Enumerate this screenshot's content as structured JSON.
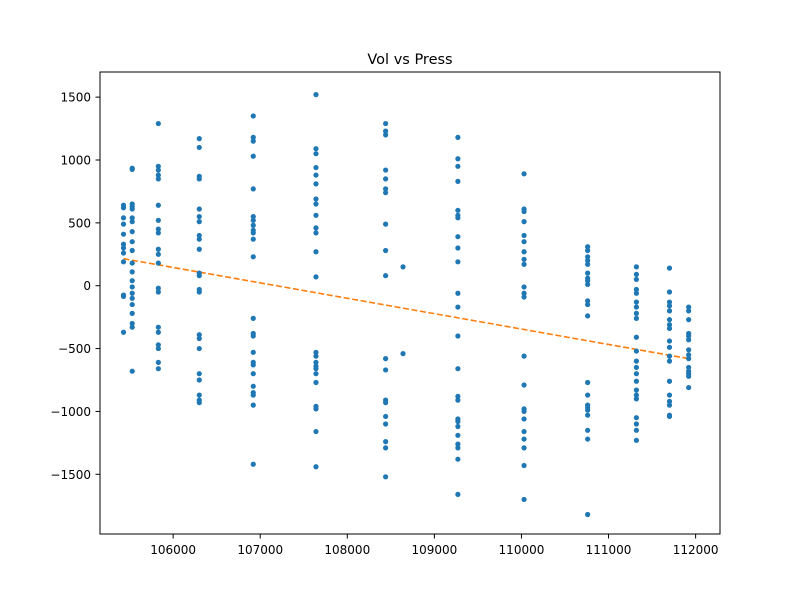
{
  "chart_data": {
    "type": "scatter",
    "title": "Vol vs Press",
    "xlabel": "",
    "ylabel": "",
    "xlim": [
      105160,
      112280
    ],
    "ylim": [
      -1975,
      1700
    ],
    "x_ticks": [
      106000,
      107000,
      108000,
      109000,
      110000,
      111000,
      112000
    ],
    "y_ticks": [
      -1500,
      -1000,
      -500,
      0,
      500,
      1000,
      1500
    ],
    "grid": false,
    "legend": "none",
    "colors": {
      "points": "#1f77b4",
      "trend": "#ff7f0e"
    },
    "series": [
      {
        "marker": "point",
        "points": [
          [
            105430,
            640
          ],
          [
            105430,
            620
          ],
          [
            105430,
            540
          ],
          [
            105430,
            490
          ],
          [
            105430,
            410
          ],
          [
            105430,
            330
          ],
          [
            105430,
            300
          ],
          [
            105430,
            260
          ],
          [
            105430,
            190
          ],
          [
            105430,
            -75
          ],
          [
            105430,
            -85
          ],
          [
            105430,
            -370
          ],
          [
            105530,
            935
          ],
          [
            105530,
            925
          ],
          [
            105530,
            650
          ],
          [
            105530,
            630
          ],
          [
            105530,
            610
          ],
          [
            105530,
            540
          ],
          [
            105530,
            510
          ],
          [
            105530,
            430
          ],
          [
            105530,
            350
          ],
          [
            105530,
            280
          ],
          [
            105530,
            180
          ],
          [
            105530,
            110
          ],
          [
            105530,
            40
          ],
          [
            105530,
            -10
          ],
          [
            105530,
            -60
          ],
          [
            105530,
            -100
          ],
          [
            105530,
            -150
          ],
          [
            105530,
            -220
          ],
          [
            105530,
            -300
          ],
          [
            105530,
            -330
          ],
          [
            105530,
            -680
          ],
          [
            105830,
            1290
          ],
          [
            105830,
            950
          ],
          [
            105830,
            920
          ],
          [
            105830,
            880
          ],
          [
            105830,
            850
          ],
          [
            105830,
            640
          ],
          [
            105830,
            520
          ],
          [
            105830,
            450
          ],
          [
            105830,
            420
          ],
          [
            105830,
            290
          ],
          [
            105830,
            250
          ],
          [
            105830,
            180
          ],
          [
            105830,
            -20
          ],
          [
            105830,
            -50
          ],
          [
            105830,
            -330
          ],
          [
            105830,
            -370
          ],
          [
            105830,
            -470
          ],
          [
            105830,
            -500
          ],
          [
            105830,
            -610
          ],
          [
            105830,
            -660
          ],
          [
            106300,
            1170
          ],
          [
            106300,
            1100
          ],
          [
            106300,
            870
          ],
          [
            106300,
            850
          ],
          [
            106300,
            610
          ],
          [
            106300,
            550
          ],
          [
            106300,
            510
          ],
          [
            106300,
            400
          ],
          [
            106300,
            370
          ],
          [
            106300,
            290
          ],
          [
            106300,
            100
          ],
          [
            106300,
            80
          ],
          [
            106300,
            -30
          ],
          [
            106300,
            -50
          ],
          [
            106300,
            -390
          ],
          [
            106300,
            -420
          ],
          [
            106300,
            -500
          ],
          [
            106300,
            -700
          ],
          [
            106300,
            -750
          ],
          [
            106300,
            -870
          ],
          [
            106300,
            -910
          ],
          [
            106300,
            -930
          ],
          [
            106920,
            1350
          ],
          [
            106920,
            1180
          ],
          [
            106920,
            1150
          ],
          [
            106920,
            1030
          ],
          [
            106920,
            770
          ],
          [
            106920,
            550
          ],
          [
            106920,
            520
          ],
          [
            106920,
            480
          ],
          [
            106920,
            440
          ],
          [
            106920,
            420
          ],
          [
            106920,
            370
          ],
          [
            106920,
            230
          ],
          [
            106920,
            -260
          ],
          [
            106920,
            -380
          ],
          [
            106920,
            -400
          ],
          [
            106920,
            -530
          ],
          [
            106920,
            -610
          ],
          [
            106920,
            -630
          ],
          [
            106920,
            -700
          ],
          [
            106920,
            -800
          ],
          [
            106920,
            -850
          ],
          [
            106920,
            -870
          ],
          [
            106920,
            -950
          ],
          [
            106920,
            -1420
          ],
          [
            107640,
            1520
          ],
          [
            107640,
            1090
          ],
          [
            107640,
            1050
          ],
          [
            107640,
            940
          ],
          [
            107640,
            880
          ],
          [
            107640,
            810
          ],
          [
            107640,
            690
          ],
          [
            107640,
            650
          ],
          [
            107640,
            560
          ],
          [
            107640,
            460
          ],
          [
            107640,
            420
          ],
          [
            107640,
            270
          ],
          [
            107640,
            70
          ],
          [
            107640,
            -530
          ],
          [
            107640,
            -560
          ],
          [
            107640,
            -610
          ],
          [
            107640,
            -640
          ],
          [
            107640,
            -660
          ],
          [
            107640,
            -700
          ],
          [
            107640,
            -770
          ],
          [
            107640,
            -960
          ],
          [
            107640,
            -980
          ],
          [
            107640,
            -1160
          ],
          [
            107640,
            -1440
          ],
          [
            108440,
            1290
          ],
          [
            108440,
            1230
          ],
          [
            108440,
            1200
          ],
          [
            108440,
            920
          ],
          [
            108440,
            850
          ],
          [
            108440,
            770
          ],
          [
            108440,
            740
          ],
          [
            108440,
            490
          ],
          [
            108440,
            280
          ],
          [
            108440,
            80
          ],
          [
            108440,
            -580
          ],
          [
            108440,
            -670
          ],
          [
            108440,
            -910
          ],
          [
            108440,
            -930
          ],
          [
            108440,
            -1040
          ],
          [
            108440,
            -1100
          ],
          [
            108440,
            -1240
          ],
          [
            108440,
            -1290
          ],
          [
            108440,
            -1520
          ],
          [
            108640,
            150
          ],
          [
            108640,
            -540
          ],
          [
            109270,
            1180
          ],
          [
            109270,
            1010
          ],
          [
            109270,
            950
          ],
          [
            109270,
            830
          ],
          [
            109270,
            600
          ],
          [
            109270,
            560
          ],
          [
            109270,
            540
          ],
          [
            109270,
            390
          ],
          [
            109270,
            300
          ],
          [
            109270,
            190
          ],
          [
            109270,
            -60
          ],
          [
            109270,
            -170
          ],
          [
            109270,
            -400
          ],
          [
            109270,
            -660
          ],
          [
            109270,
            -880
          ],
          [
            109270,
            -910
          ],
          [
            109270,
            -1060
          ],
          [
            109270,
            -1080
          ],
          [
            109270,
            -1120
          ],
          [
            109270,
            -1190
          ],
          [
            109270,
            -1260
          ],
          [
            109270,
            -1290
          ],
          [
            109270,
            -1380
          ],
          [
            109270,
            -1660
          ],
          [
            110030,
            890
          ],
          [
            110030,
            610
          ],
          [
            110030,
            590
          ],
          [
            110030,
            510
          ],
          [
            110030,
            400
          ],
          [
            110030,
            350
          ],
          [
            110030,
            270
          ],
          [
            110030,
            210
          ],
          [
            110030,
            170
          ],
          [
            110030,
            -10
          ],
          [
            110030,
            -60
          ],
          [
            110030,
            -90
          ],
          [
            110030,
            -560
          ],
          [
            110030,
            -790
          ],
          [
            110030,
            -980
          ],
          [
            110030,
            -1000
          ],
          [
            110030,
            -1060
          ],
          [
            110030,
            -1160
          ],
          [
            110030,
            -1220
          ],
          [
            110030,
            -1290
          ],
          [
            110030,
            -1430
          ],
          [
            110030,
            -1700
          ],
          [
            110760,
            310
          ],
          [
            110760,
            280
          ],
          [
            110760,
            230
          ],
          [
            110760,
            200
          ],
          [
            110760,
            170
          ],
          [
            110760,
            100
          ],
          [
            110760,
            60
          ],
          [
            110760,
            40
          ],
          [
            110760,
            10
          ],
          [
            110760,
            -120
          ],
          [
            110760,
            -150
          ],
          [
            110760,
            -240
          ],
          [
            110760,
            -770
          ],
          [
            110760,
            -870
          ],
          [
            110760,
            -950
          ],
          [
            110760,
            -970
          ],
          [
            110760,
            -990
          ],
          [
            110760,
            -1030
          ],
          [
            110760,
            -1150
          ],
          [
            110760,
            -1220
          ],
          [
            110760,
            -1820
          ],
          [
            111320,
            150
          ],
          [
            111320,
            90
          ],
          [
            111320,
            50
          ],
          [
            111320,
            -30
          ],
          [
            111320,
            -60
          ],
          [
            111320,
            -130
          ],
          [
            111320,
            -170
          ],
          [
            111320,
            -220
          ],
          [
            111320,
            -260
          ],
          [
            111320,
            -410
          ],
          [
            111320,
            -520
          ],
          [
            111320,
            -600
          ],
          [
            111320,
            -650
          ],
          [
            111320,
            -700
          ],
          [
            111320,
            -760
          ],
          [
            111320,
            -830
          ],
          [
            111320,
            -870
          ],
          [
            111320,
            -900
          ],
          [
            111320,
            -1050
          ],
          [
            111320,
            -1100
          ],
          [
            111320,
            -1150
          ],
          [
            111320,
            -1230
          ],
          [
            111700,
            140
          ],
          [
            111700,
            -50
          ],
          [
            111700,
            -130
          ],
          [
            111700,
            -160
          ],
          [
            111700,
            -200
          ],
          [
            111700,
            -270
          ],
          [
            111700,
            -310
          ],
          [
            111700,
            -340
          ],
          [
            111700,
            -440
          ],
          [
            111700,
            -490
          ],
          [
            111700,
            -560
          ],
          [
            111700,
            -600
          ],
          [
            111700,
            -760
          ],
          [
            111700,
            -870
          ],
          [
            111700,
            -920
          ],
          [
            111700,
            -950
          ],
          [
            111700,
            -1030
          ],
          [
            111700,
            -1040
          ],
          [
            111920,
            -170
          ],
          [
            111920,
            -200
          ],
          [
            111920,
            -270
          ],
          [
            111920,
            -380
          ],
          [
            111920,
            -400
          ],
          [
            111920,
            -430
          ],
          [
            111920,
            -510
          ],
          [
            111920,
            -550
          ],
          [
            111920,
            -580
          ],
          [
            111920,
            -650
          ],
          [
            111920,
            -680
          ],
          [
            111920,
            -700
          ],
          [
            111920,
            -720
          ],
          [
            111920,
            -810
          ]
        ]
      },
      {
        "marker": "dashed-line",
        "points": [
          [
            105430,
            215
          ],
          [
            111920,
            -580
          ]
        ]
      }
    ]
  }
}
